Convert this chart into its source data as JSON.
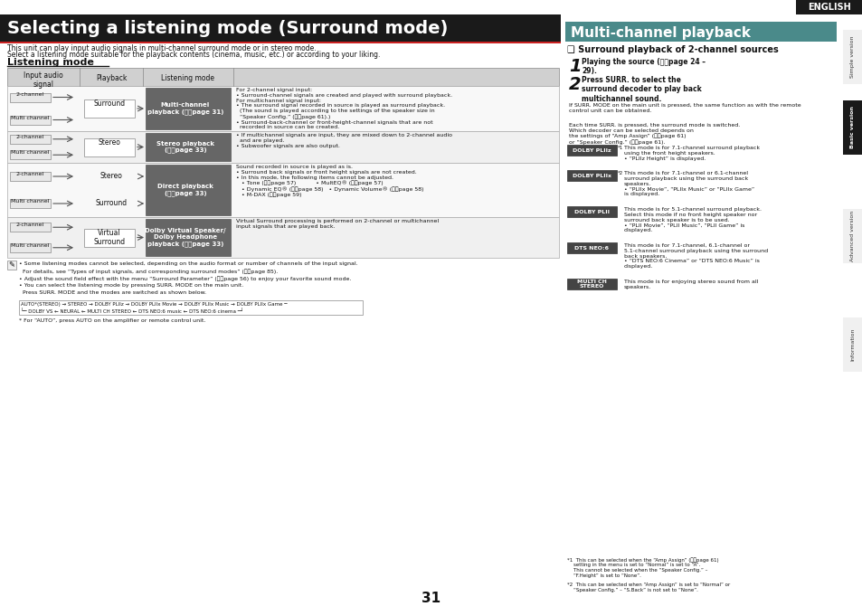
{
  "page_bg": "#ffffff",
  "main_title": "Selecting a listening mode (Surround mode)",
  "main_title_bg": "#1a1a1a",
  "main_title_color": "#ffffff",
  "subtitle_text1": "This unit can play input audio signals in multi-channel surround mode or in stereo mode.",
  "subtitle_text2": "Select a listening mode suitable for the playback contents (cinema, music, etc.) or according to your liking.",
  "section_title": "Listening mode",
  "right_title": "Multi-channel playback",
  "right_title_bg": "#4a8a8a",
  "right_title_color": "#ffffff",
  "right_subtitle": "❑ Surround playback of 2-channel sources",
  "english_label": "ENGLISH",
  "english_bg": "#1a1a1a",
  "english_color": "#ffffff",
  "tab_simple": "Simple version",
  "tab_basic": "Basic version",
  "tab_advanced": "Advanced version",
  "tab_info": "Information",
  "tab_basic_bg": "#1a1a1a",
  "tab_basic_color": "#ffffff",
  "tab_other_bg": "#f0f0f0",
  "tab_other_color": "#333333",
  "page_number": "31",
  "table_header_bg": "#d0d0d0",
  "table_col1": "Input audio\nsignal",
  "table_col2": "Playback",
  "table_col3": "Listening mode",
  "listening_mode_col_bg": "#707070",
  "listening_mode_col_color": "#ffffff",
  "row1_signals": [
    "2-channel",
    "Multi channel"
  ],
  "row1_playback": "Surround",
  "row1_mode": "Multi-channel\nplayback (⭘⭘page 31)",
  "row1_desc": "For 2-channel signal input:\n• Surround-channel signals are created and played with surround playback.\nFor multichannel signal input:\n• The surround signal recorded in source is played as surround playback.\n  (The sound is played according to the settings of the speaker size in\n  “Speaker Config.” (⭘⭘page 61).)\n• Surround-back-channel or front-height-channel signals that are not\n  recorded in source can be created.",
  "row2_signals": [
    "2-channel",
    "Multi channel"
  ],
  "row2_playback": "Stereo",
  "row2_mode": "Stereo playback\n(⭘⭘page 33)",
  "row2_desc": "• If multichannel signals are input, they are mixed down to 2-channel audio\n  and are played.\n• Subwoofer signals are also output.",
  "row3_signals": [
    "2-channel",
    "Multi channel"
  ],
  "row3_playback": [
    "Stereo",
    "Surround"
  ],
  "row3_mode": "Direct playback\n(⭘⭘page 33)",
  "row3_desc": "Sound recorded in source is played as is.\n• Surround back signals or front height signals are not created.\n• In this mode, the following items cannot be adjusted.\n   • Tone (⭘⭘page 57)           • MultEQ® (⭘⭘page 57)\n   • Dynamic EQ® (⭘⭘page 58)   • Dynamic Volume® (⭘⭘page 58)\n   • M-DAX (⭘⭘page 59)",
  "row4_signals": [
    "2-channel",
    "Multi channel"
  ],
  "row4_playback": "Virtual\nSurround",
  "row4_mode": "Dolby Virtual Speaker/\nDolby Headphone\nplayback (⭘⭘page 33)",
  "row4_desc": "Virtual Surround processing is performed on 2-channel or multichannel\ninput signals that are played back.",
  "note_icon": "✎",
  "note_lines": [
    "• Some listening modes cannot be selected, depending on the audio format or number of channels of the input signal.",
    "  For details, see “Types of input signals, and corresponding surround modes” (⭘⭘page 85).",
    "• Adjust the sound field effect with the menu “Surround Parameter” (⭘⭘page 56) to enjoy your favorite sound mode.",
    "• You can select the listening mode by pressing SURR. MODE on the main unit.",
    "  Press SURR. MODE and the modes are switched as shown below."
  ],
  "mode_flow1": "AUTO*(STEREO) → STEREO → DOLBY PLIIz → DOLBY PLIIx Movie → DOLBY PLIIx Music → DOLBY PLIIx Game ─",
  "mode_flow2": "└─ DOLBY VS ← NEURAL ← MULTI CH STEREO ← DTS NEO:6 music ← DTS NEO:6 cinema ─┘",
  "auto_note": "* For “AUTO”, press AUTO on the amplifier or remote control unit.",
  "right_step1_num": "1",
  "right_step1_text": "Playing the source (⭘⭘page 24 –\n29).",
  "right_step2_num": "2",
  "right_step2_text": "Press SURR. to select the\nsurround decoder to play back\nmultichannel sound.",
  "right_bullets": [
    "If SURR. MODE on the main unit is pressed, the same function as with the remote\ncontrol unit can be obtained.",
    "Each time SURR. is pressed, the surround mode is switched.\nWhich decoder can be selected depends on\nthe settings of “Amp Assign” (⭘⭘page 61)\nor “Speaker Config.” (⭘⭘page 61)."
  ],
  "right_modes": [
    [
      "DOLBY PLIIz",
      "*1",
      "This mode is for 7.1-channel surround playback\nusing the front height speakers.\n• “PLIIz Height” is displayed."
    ],
    [
      "DOLBY PLIIx",
      "*2",
      "This mode is for 7.1-channel or 6.1-channel\nsurround playback using the surround back\nspeakers.\n• “PLIIx Movie”, “PLIIx Music” or “PLIIx Game”\nis displayed."
    ],
    [
      "DOLBY PLII",
      "",
      "This mode is for 5.1-channel surround playback.\nSelect this mode if no front height speaker nor\nsurround back speaker is to be used.\n• “PLII Movie”, “PLII Music”, “PLII Game” is\ndisplayed."
    ],
    [
      "DTS NEO:6",
      "",
      "This mode is for 7.1-channel, 6.1-channel or\n5.1-channel surround playback using the surround\nback speakers.\n• “DTS NEO:6 Cinema” or “DTS NEO:6 Music” is\ndisplayed."
    ],
    [
      "MULTI CH\nSTEREO",
      "",
      "This mode is for enjoying stereo sound from all\nspeakers."
    ]
  ],
  "footnote1": "*1  This can be selected when the “Amp Assign” (⭘⭘page 61)\n    setting in the menu is set to “Normal” is set to “A”.\n    This cannot be selected when the “Speaker Config.” –\n    “F.Height” is set to “None”.",
  "footnote2": "*2  This can be selected when “Amp Assign” is set to “Normal” or\n    “Speaker Config.” – “S.Back” is not set to “None”."
}
